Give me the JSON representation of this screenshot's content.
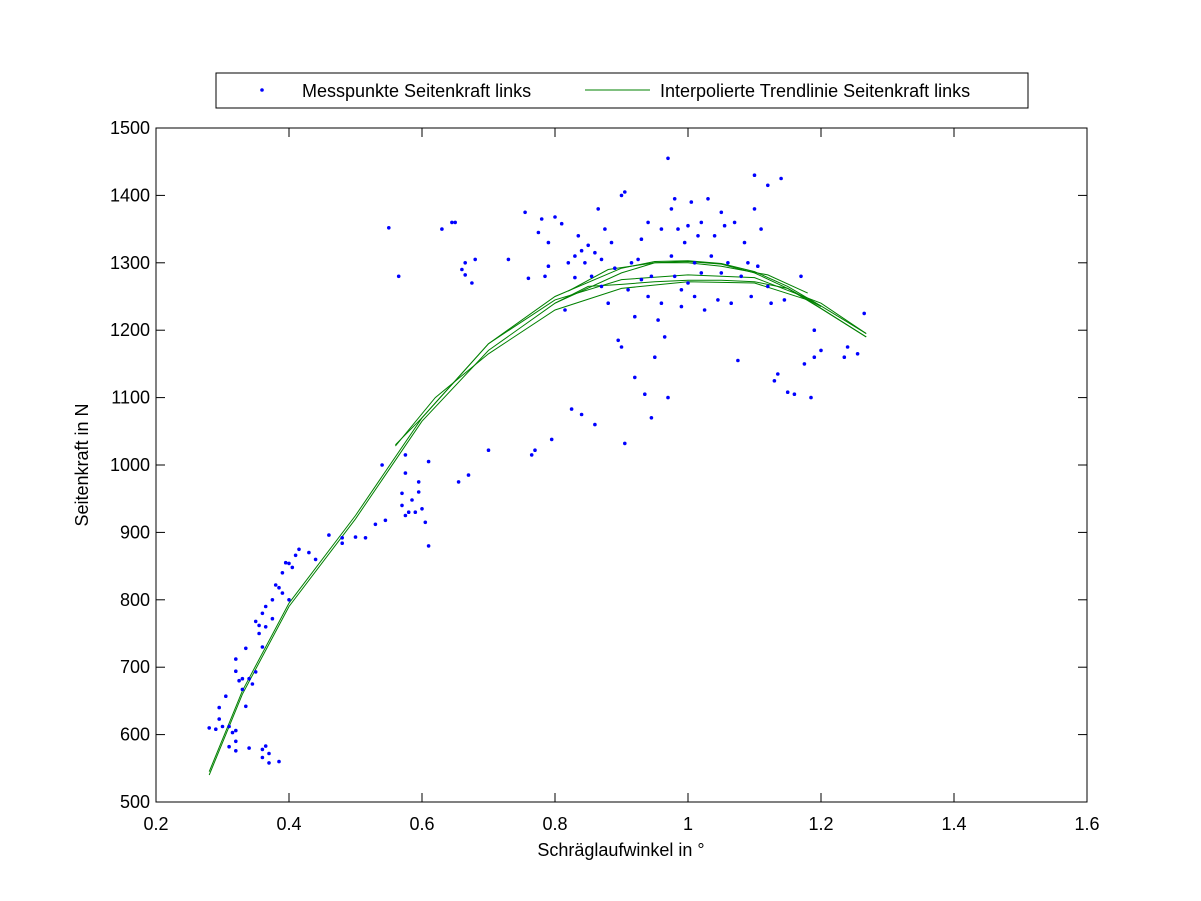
{
  "chart_data": {
    "type": "scatter",
    "title": "",
    "xlabel": "Schräglaufwinkel in °",
    "ylabel": "Seitenkraft in N",
    "xlim": [
      0.2,
      1.6
    ],
    "ylim": [
      500,
      1500
    ],
    "xticks": [
      0.2,
      0.4,
      0.6,
      0.8,
      1,
      1.2,
      1.4,
      1.6
    ],
    "xtick_labels": [
      "0.2",
      "0.4",
      "0.6",
      "0.8",
      "1",
      "1.2",
      "1.4",
      "1.6"
    ],
    "yticks": [
      500,
      600,
      700,
      800,
      900,
      1000,
      1100,
      1200,
      1300,
      1400,
      1500
    ],
    "ytick_labels": [
      "500",
      "600",
      "700",
      "800",
      "900",
      "1000",
      "1100",
      "1200",
      "1300",
      "1400",
      "1500"
    ],
    "grid": false,
    "legend_placement": "top-center, above axes",
    "series": [
      {
        "name": "Messpunkte Seitenkraft links",
        "kind": "markers",
        "color": "#0000ff",
        "points": [
          [
            0.28,
            610
          ],
          [
            0.29,
            608
          ],
          [
            0.295,
            640
          ],
          [
            0.295,
            623
          ],
          [
            0.3,
            612
          ],
          [
            0.305,
            657
          ],
          [
            0.31,
            612
          ],
          [
            0.31,
            582
          ],
          [
            0.315,
            603
          ],
          [
            0.32,
            606
          ],
          [
            0.32,
            590
          ],
          [
            0.32,
            576
          ],
          [
            0.32,
            712
          ],
          [
            0.32,
            694
          ],
          [
            0.325,
            680
          ],
          [
            0.33,
            683
          ],
          [
            0.33,
            667
          ],
          [
            0.335,
            642
          ],
          [
            0.335,
            728
          ],
          [
            0.34,
            683
          ],
          [
            0.34,
            580
          ],
          [
            0.345,
            675
          ],
          [
            0.35,
            693
          ],
          [
            0.35,
            768
          ],
          [
            0.355,
            750
          ],
          [
            0.355,
            762
          ],
          [
            0.36,
            730
          ],
          [
            0.36,
            780
          ],
          [
            0.36,
            566
          ],
          [
            0.36,
            578
          ],
          [
            0.365,
            760
          ],
          [
            0.365,
            790
          ],
          [
            0.365,
            583
          ],
          [
            0.37,
            572
          ],
          [
            0.37,
            558
          ],
          [
            0.375,
            772
          ],
          [
            0.375,
            800
          ],
          [
            0.38,
            822
          ],
          [
            0.385,
            818
          ],
          [
            0.385,
            560
          ],
          [
            0.39,
            810
          ],
          [
            0.39,
            840
          ],
          [
            0.395,
            855
          ],
          [
            0.4,
            854
          ],
          [
            0.4,
            800
          ],
          [
            0.405,
            848
          ],
          [
            0.41,
            866
          ],
          [
            0.415,
            875
          ],
          [
            0.43,
            870
          ],
          [
            0.44,
            860
          ],
          [
            0.46,
            896
          ],
          [
            0.48,
            892
          ],
          [
            0.48,
            884
          ],
          [
            0.5,
            893
          ],
          [
            0.515,
            892
          ],
          [
            0.53,
            912
          ],
          [
            0.54,
            1000
          ],
          [
            0.545,
            918
          ],
          [
            0.55,
            1352
          ],
          [
            0.565,
            1280
          ],
          [
            0.57,
            958
          ],
          [
            0.57,
            940
          ],
          [
            0.575,
            925
          ],
          [
            0.575,
            988
          ],
          [
            0.575,
            1015
          ],
          [
            0.58,
            930
          ],
          [
            0.585,
            948
          ],
          [
            0.59,
            930
          ],
          [
            0.595,
            960
          ],
          [
            0.595,
            975
          ],
          [
            0.6,
            935
          ],
          [
            0.605,
            915
          ],
          [
            0.61,
            880
          ],
          [
            0.61,
            1005
          ],
          [
            0.63,
            1350
          ],
          [
            0.645,
            1360
          ],
          [
            0.65,
            1360
          ],
          [
            0.655,
            975
          ],
          [
            0.66,
            1290
          ],
          [
            0.665,
            1282
          ],
          [
            0.665,
            1300
          ],
          [
            0.67,
            985
          ],
          [
            0.675,
            1270
          ],
          [
            0.68,
            1305
          ],
          [
            0.7,
            1022
          ],
          [
            0.73,
            1305
          ],
          [
            0.755,
            1375
          ],
          [
            0.76,
            1277
          ],
          [
            0.765,
            1015
          ],
          [
            0.77,
            1022
          ],
          [
            0.775,
            1345
          ],
          [
            0.78,
            1365
          ],
          [
            0.785,
            1280
          ],
          [
            0.79,
            1295
          ],
          [
            0.79,
            1330
          ],
          [
            0.795,
            1038
          ],
          [
            0.8,
            1368
          ],
          [
            0.81,
            1358
          ],
          [
            0.815,
            1230
          ],
          [
            0.82,
            1300
          ],
          [
            0.825,
            1083
          ],
          [
            0.83,
            1310
          ],
          [
            0.83,
            1278
          ],
          [
            0.835,
            1340
          ],
          [
            0.84,
            1075
          ],
          [
            0.84,
            1318
          ],
          [
            0.845,
            1300
          ],
          [
            0.85,
            1326
          ],
          [
            0.855,
            1280
          ],
          [
            0.86,
            1060
          ],
          [
            0.86,
            1315
          ],
          [
            0.865,
            1380
          ],
          [
            0.87,
            1305
          ],
          [
            0.87,
            1265
          ],
          [
            0.875,
            1350
          ],
          [
            0.88,
            1240
          ],
          [
            0.885,
            1330
          ],
          [
            0.89,
            1292
          ],
          [
            0.895,
            1185
          ],
          [
            0.9,
            1400
          ],
          [
            0.9,
            1175
          ],
          [
            0.905,
            1405
          ],
          [
            0.905,
            1032
          ],
          [
            0.91,
            1260
          ],
          [
            0.915,
            1300
          ],
          [
            0.92,
            1130
          ],
          [
            0.92,
            1220
          ],
          [
            0.925,
            1305
          ],
          [
            0.93,
            1275
          ],
          [
            0.93,
            1335
          ],
          [
            0.935,
            1105
          ],
          [
            0.94,
            1250
          ],
          [
            0.94,
            1360
          ],
          [
            0.945,
            1280
          ],
          [
            0.945,
            1070
          ],
          [
            0.95,
            1160
          ],
          [
            0.955,
            1215
          ],
          [
            0.96,
            1350
          ],
          [
            0.96,
            1240
          ],
          [
            0.965,
            1190
          ],
          [
            0.97,
            1455
          ],
          [
            0.97,
            1100
          ],
          [
            0.975,
            1380
          ],
          [
            0.975,
            1310
          ],
          [
            0.98,
            1280
          ],
          [
            0.98,
            1395
          ],
          [
            0.985,
            1350
          ],
          [
            0.99,
            1260
          ],
          [
            0.99,
            1235
          ],
          [
            0.995,
            1330
          ],
          [
            1.0,
            1270
          ],
          [
            1.0,
            1355
          ],
          [
            1.005,
            1390
          ],
          [
            1.01,
            1300
          ],
          [
            1.01,
            1250
          ],
          [
            1.015,
            1340
          ],
          [
            1.02,
            1360
          ],
          [
            1.02,
            1285
          ],
          [
            1.025,
            1230
          ],
          [
            1.03,
            1395
          ],
          [
            1.035,
            1310
          ],
          [
            1.04,
            1340
          ],
          [
            1.045,
            1245
          ],
          [
            1.05,
            1375
          ],
          [
            1.05,
            1285
          ],
          [
            1.055,
            1355
          ],
          [
            1.06,
            1300
          ],
          [
            1.065,
            1240
          ],
          [
            1.07,
            1360
          ],
          [
            1.075,
            1155
          ],
          [
            1.08,
            1280
          ],
          [
            1.085,
            1330
          ],
          [
            1.09,
            1300
          ],
          [
            1.095,
            1250
          ],
          [
            1.1,
            1430
          ],
          [
            1.1,
            1380
          ],
          [
            1.105,
            1295
          ],
          [
            1.11,
            1350
          ],
          [
            1.12,
            1265
          ],
          [
            1.12,
            1415
          ],
          [
            1.125,
            1240
          ],
          [
            1.13,
            1125
          ],
          [
            1.135,
            1135
          ],
          [
            1.14,
            1425
          ],
          [
            1.145,
            1245
          ],
          [
            1.15,
            1108
          ],
          [
            1.16,
            1105
          ],
          [
            1.17,
            1280
          ],
          [
            1.175,
            1150
          ],
          [
            1.185,
            1100
          ],
          [
            1.19,
            1200
          ],
          [
            1.19,
            1160
          ],
          [
            1.2,
            1170
          ],
          [
            1.235,
            1160
          ],
          [
            1.24,
            1175
          ],
          [
            1.255,
            1165
          ],
          [
            1.265,
            1225
          ]
        ]
      },
      {
        "name": "Interpolierte Trendlinie Seitenkraft links",
        "kind": "line",
        "color": "#008000",
        "curves": [
          [
            [
              0.28,
              540
            ],
            [
              0.33,
              660
            ],
            [
              0.4,
              790
            ],
            [
              0.5,
              920
            ],
            [
              0.6,
              1065
            ],
            [
              0.7,
              1170
            ],
            [
              0.8,
              1240
            ],
            [
              0.9,
              1285
            ],
            [
              0.95,
              1300
            ],
            [
              1.0,
              1302
            ],
            [
              1.05,
              1298
            ],
            [
              1.1,
              1285
            ],
            [
              1.15,
              1262
            ],
            [
              1.2,
              1232
            ],
            [
              1.268,
              1190
            ]
          ],
          [
            [
              0.28,
              545
            ],
            [
              0.33,
              665
            ],
            [
              0.4,
              795
            ],
            [
              0.5,
              925
            ],
            [
              0.6,
              1070
            ],
            [
              0.7,
              1180
            ],
            [
              0.8,
              1250
            ],
            [
              0.9,
              1292
            ],
            [
              0.95,
              1302
            ],
            [
              1.0,
              1303
            ],
            [
              1.05,
              1299
            ],
            [
              1.1,
              1287
            ],
            [
              1.15,
              1265
            ],
            [
              1.2,
              1236
            ],
            [
              1.268,
              1195
            ]
          ],
          [
            [
              0.56,
              1030
            ],
            [
              0.6,
              1070
            ],
            [
              0.7,
              1180
            ],
            [
              0.8,
              1245
            ],
            [
              0.9,
              1275
            ],
            [
              1.0,
              1282
            ],
            [
              1.1,
              1278
            ],
            [
              1.2,
              1240
            ],
            [
              1.268,
              1195
            ]
          ],
          [
            [
              0.56,
              1028
            ],
            [
              0.62,
              1100
            ],
            [
              0.7,
              1165
            ],
            [
              0.8,
              1230
            ],
            [
              0.9,
              1262
            ],
            [
              1.0,
              1272
            ],
            [
              1.1,
              1270
            ],
            [
              1.18,
              1245
            ],
            [
              1.268,
              1190
            ]
          ],
          [
            [
              0.8,
              1240
            ],
            [
              0.85,
              1265
            ],
            [
              0.9,
              1268
            ],
            [
              0.95,
              1272
            ],
            [
              1.0,
              1274
            ],
            [
              1.05,
              1274
            ],
            [
              1.1,
              1272
            ],
            [
              1.15,
              1262
            ],
            [
              1.2,
              1235
            ]
          ],
          [
            [
              0.82,
              1258
            ],
            [
              0.88,
              1290
            ],
            [
              0.95,
              1300
            ],
            [
              1.0,
              1300
            ],
            [
              1.05,
              1295
            ],
            [
              1.12,
              1282
            ],
            [
              1.18,
              1255
            ]
          ]
        ]
      }
    ]
  }
}
